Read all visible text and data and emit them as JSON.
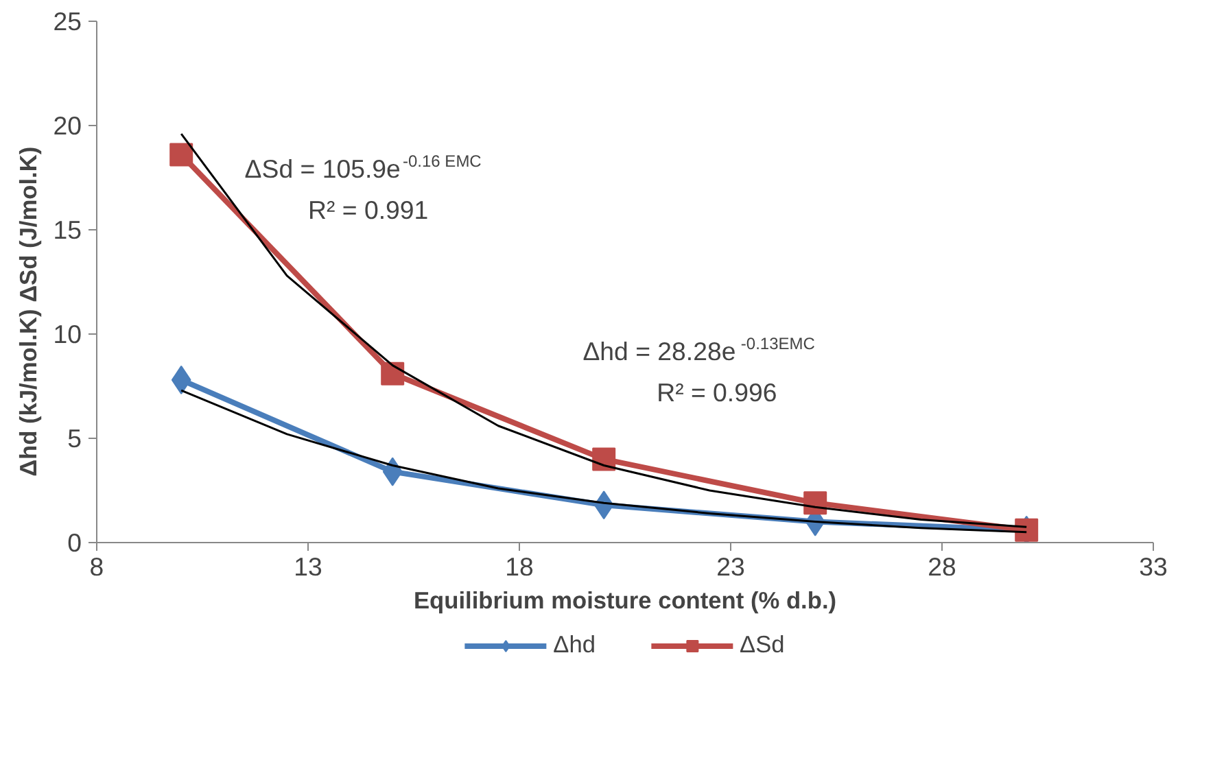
{
  "chart_data": {
    "type": "line",
    "xlabel": "Equilibrium moisture content (% d.b.)",
    "ylabel": "Δhd (kJ/mol.K)          ΔSd (J/mol.K)",
    "x": [
      10,
      15,
      20,
      25,
      30
    ],
    "series": [
      {
        "name": "Δhd",
        "color": "#4a7ebb",
        "values": [
          7.8,
          3.4,
          1.8,
          1.0,
          0.6
        ],
        "marker": "diamond"
      },
      {
        "name": "ΔSd",
        "color": "#be4b48",
        "values": [
          18.6,
          8.1,
          4.0,
          1.9,
          0.6
        ],
        "marker": "square"
      },
      {
        "type": "line",
        "color": "#000000",
        "marker": "none",
        "x": [
          10,
          12.5,
          15,
          17.5,
          20,
          22.5,
          25,
          27.5,
          30
        ],
        "values": [
          7.3,
          5.2,
          3.7,
          2.6,
          1.9,
          1.4,
          1.0,
          0.7,
          0.5
        ]
      },
      {
        "type": "line",
        "color": "#000000",
        "marker": "none",
        "x": [
          10,
          12.5,
          15,
          17.5,
          20,
          22.5,
          25,
          27.5,
          30
        ],
        "values": [
          19.6,
          12.8,
          8.5,
          5.6,
          3.7,
          2.5,
          1.7,
          1.1,
          0.75
        ]
      }
    ],
    "xlim": [
      8,
      33
    ],
    "xticks": [
      8,
      13,
      18,
      23,
      28,
      33
    ],
    "ylim": [
      0,
      25
    ],
    "yticks": [
      0,
      5,
      10,
      15,
      20,
      25
    ],
    "grid": false,
    "legend": "bottom",
    "annotations": [
      "ΔSd = 105.9e$^{-0.16 EMC}$",
      "R² = 0.991",
      "Δhd = 28.28e$^{-0.13EMC}$",
      "R² = 0.996"
    ]
  }
}
